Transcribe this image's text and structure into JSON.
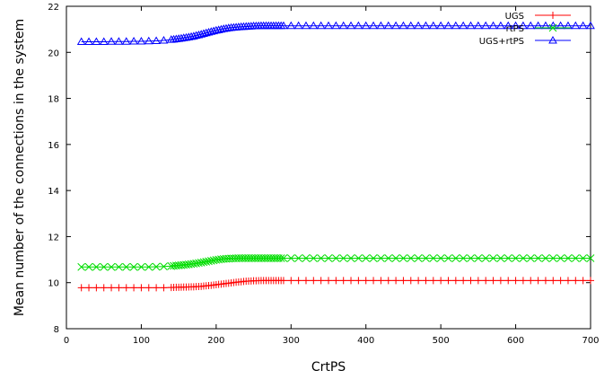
{
  "chart_data": {
    "type": "line",
    "xlabel": "CrtPS",
    "ylabel": "Mean number of the connections in the system",
    "xlim": [
      0,
      700
    ],
    "ylim": [
      8,
      22
    ],
    "x_ticks": [
      0,
      100,
      200,
      300,
      400,
      500,
      600,
      700
    ],
    "y_ticks": [
      8,
      10,
      12,
      14,
      16,
      18,
      20,
      22
    ],
    "grid": false,
    "legend_position": "top-right",
    "x": [
      20,
      30,
      40,
      50,
      60,
      70,
      80,
      90,
      100,
      110,
      120,
      130,
      140,
      150,
      160,
      170,
      180,
      190,
      200,
      210,
      220,
      230,
      240,
      250,
      260,
      270,
      280,
      290,
      300,
      310,
      320,
      330,
      340,
      350,
      360,
      370,
      380,
      390,
      400,
      410,
      420,
      430,
      440,
      450,
      460,
      470,
      480,
      490,
      500,
      510,
      520,
      530,
      540,
      550,
      560,
      570,
      580,
      590,
      600,
      610,
      620,
      630,
      640,
      650,
      660,
      670,
      680,
      690,
      700
    ],
    "series": [
      {
        "name": "UGS",
        "color": "#ff0000",
        "marker": "plus",
        "values": [
          9.78,
          9.78,
          9.78,
          9.78,
          9.78,
          9.78,
          9.78,
          9.78,
          9.78,
          9.78,
          9.78,
          9.78,
          9.79,
          9.8,
          9.81,
          9.82,
          9.84,
          9.87,
          9.91,
          9.95,
          9.99,
          10.03,
          10.06,
          10.08,
          10.09,
          10.09,
          10.09,
          10.09,
          10.09,
          10.09,
          10.09,
          10.09,
          10.09,
          10.09,
          10.09,
          10.09,
          10.09,
          10.09,
          10.09,
          10.09,
          10.09,
          10.09,
          10.09,
          10.09,
          10.09,
          10.09,
          10.09,
          10.09,
          10.09,
          10.09,
          10.09,
          10.09,
          10.09,
          10.09,
          10.09,
          10.09,
          10.09,
          10.09,
          10.09,
          10.09,
          10.09,
          10.09,
          10.09,
          10.09,
          10.09,
          10.09,
          10.09,
          10.09,
          10.09
        ]
      },
      {
        "name": "rtPS",
        "color": "#00dd00",
        "marker": "cross",
        "values": [
          10.68,
          10.68,
          10.68,
          10.68,
          10.68,
          10.68,
          10.68,
          10.68,
          10.68,
          10.68,
          10.69,
          10.7,
          10.72,
          10.75,
          10.78,
          10.82,
          10.87,
          10.93,
          10.99,
          11.03,
          11.05,
          11.06,
          11.06,
          11.06,
          11.06,
          11.06,
          11.06,
          11.06,
          11.06,
          11.06,
          11.06,
          11.06,
          11.06,
          11.06,
          11.06,
          11.06,
          11.06,
          11.06,
          11.06,
          11.06,
          11.06,
          11.06,
          11.06,
          11.06,
          11.06,
          11.06,
          11.06,
          11.06,
          11.06,
          11.06,
          11.06,
          11.06,
          11.06,
          11.06,
          11.06,
          11.06,
          11.06,
          11.06,
          11.06,
          11.06,
          11.06,
          11.06,
          11.06,
          11.06,
          11.06,
          11.06,
          11.06,
          11.06,
          11.06
        ]
      },
      {
        "name": "UGS+rtPS",
        "color": "#0000ff",
        "marker": "triangle",
        "values": [
          20.46,
          20.46,
          20.46,
          20.46,
          20.47,
          20.47,
          20.47,
          20.48,
          20.48,
          20.49,
          20.5,
          20.52,
          20.55,
          20.59,
          20.64,
          20.7,
          20.78,
          20.87,
          20.95,
          21.02,
          21.07,
          21.1,
          21.12,
          21.14,
          21.15,
          21.15,
          21.15,
          21.15,
          21.15,
          21.15,
          21.15,
          21.15,
          21.15,
          21.15,
          21.15,
          21.15,
          21.15,
          21.15,
          21.15,
          21.15,
          21.15,
          21.15,
          21.15,
          21.15,
          21.15,
          21.15,
          21.15,
          21.15,
          21.15,
          21.15,
          21.15,
          21.15,
          21.15,
          21.15,
          21.15,
          21.15,
          21.15,
          21.15,
          21.15,
          21.15,
          21.15,
          21.15,
          21.15,
          21.15,
          21.15,
          21.15,
          21.15,
          21.15,
          21.15
        ]
      }
    ]
  }
}
